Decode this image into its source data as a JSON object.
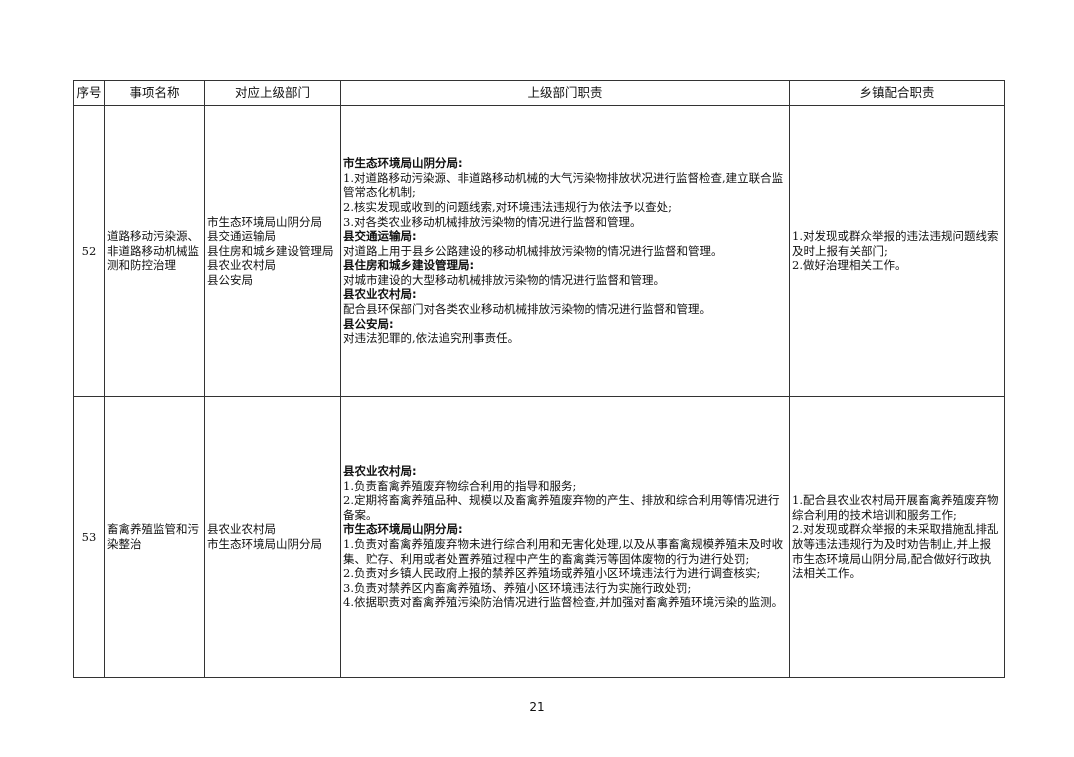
{
  "headers": [
    "序号",
    "事项名称",
    "对应上级部门",
    "上级部门职责",
    "乡镇配合职责"
  ],
  "rows": [
    {
      "no": "52",
      "name": "道路移动污染源、非道路移动机械监测和防控治理",
      "departments": [
        "市生态环境局山阴分局",
        "县交通运输局",
        "县住房和城乡建设管理局",
        "县农业农村局",
        "县公安局"
      ],
      "duties": [
        {
          "heading": "市生态环境局山阴分局:",
          "lines": [
            "1.对道路移动污染源、非道路移动机械的大气污染物排放状况进行监督检查,建立联合监管常态化机制;",
            "2.核实发现或收到的问题线索,对环境违法违规行为依法予以查处;",
            "3.对各类农业移动机械排放污染物的情况进行监督和管理。"
          ]
        },
        {
          "heading": "县交通运输局:",
          "lines": [
            "对道路上用于县乡公路建设的移动机械排放污染物的情况进行监督和管理。"
          ]
        },
        {
          "heading": "县住房和城乡建设管理局:",
          "lines": [
            "对城市建设的大型移动机械排放污染物的情况进行监督和管理。"
          ]
        },
        {
          "heading": "县农业农村局:",
          "lines": [
            "配合县环保部门对各类农业移动机械排放污染物的情况进行监督和管理。"
          ]
        },
        {
          "heading": "县公安局:",
          "lines": [
            "对违法犯罪的,依法追究刑事责任。"
          ]
        }
      ],
      "township": [
        "1.对发现或群众举报的违法违规问题线索及时上报有关部门;",
        "2.做好治理相关工作。"
      ]
    },
    {
      "no": "53",
      "name": "畜禽养殖监管和污染整治",
      "departments": [
        "县农业农村局",
        "市生态环境局山阴分局"
      ],
      "duties": [
        {
          "heading": "县农业农村局:",
          "lines": [
            "1.负责畜禽养殖废弃物综合利用的指导和服务;",
            "2.定期将畜禽养殖品种、规模以及畜禽养殖废弃物的产生、排放和综合利用等情况进行备案。"
          ]
        },
        {
          "heading": "市生态环境局山阴分局:",
          "lines": [
            "1.负责对畜禽养殖废弃物未进行综合利用和无害化处理,以及从事畜禽规模养殖未及时收集、贮存、利用或者处置养殖过程中产生的畜禽粪污等固体废物的行为进行处罚;",
            "2.负责对乡镇人民政府上报的禁养区养殖场或养殖小区环境违法行为进行调查核实;",
            "3.负责对禁养区内畜禽养殖场、养殖小区环境违法行为实施行政处罚;",
            "4.依据职责对畜禽养殖污染防治情况进行监督检查,并加强对畜禽养殖环境污染的监测。"
          ]
        }
      ],
      "township": [
        "1.配合县农业农村局开展畜禽养殖废弃物综合利用的技术培训和服务工作;",
        "2.对发现或群众举报的未采取措施乱排乱放等违法违规行为及时劝告制止,并上报市生态环境局山阴分局,配合做好行政执法相关工作。"
      ]
    }
  ],
  "page_number": "21"
}
